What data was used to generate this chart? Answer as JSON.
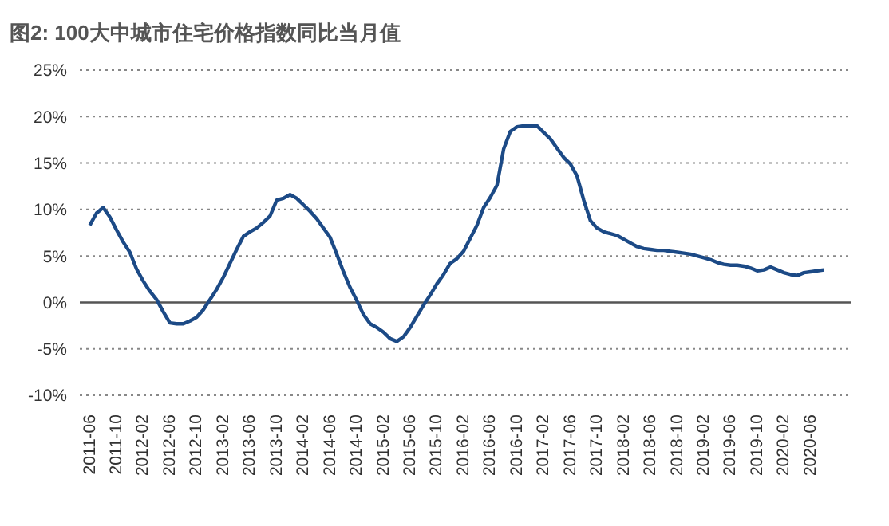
{
  "chart_data": {
    "type": "line",
    "title": "图2: 100大中城市住宅价格指数同比当月值",
    "categories": [
      "2011-06",
      null,
      null,
      null,
      "2011-10",
      null,
      null,
      null,
      "2012-02",
      null,
      null,
      null,
      "2012-06",
      null,
      null,
      null,
      "2012-10",
      null,
      null,
      null,
      "2013-02",
      null,
      null,
      null,
      "2013-06",
      null,
      null,
      null,
      "2013-10",
      null,
      null,
      null,
      "2014-02",
      null,
      null,
      null,
      "2014-06",
      null,
      null,
      null,
      "2014-10",
      null,
      null,
      null,
      "2015-02",
      null,
      null,
      null,
      "2015-06",
      null,
      null,
      null,
      "2015-10",
      null,
      null,
      null,
      "2016-02",
      null,
      null,
      null,
      "2016-06",
      null,
      null,
      null,
      "2016-10",
      null,
      null,
      null,
      "2017-02",
      null,
      null,
      null,
      "2017-06",
      null,
      null,
      null,
      "2017-10",
      null,
      null,
      null,
      "2018-02",
      null,
      null,
      null,
      "2018-06",
      null,
      null,
      null,
      "2018-10",
      null,
      null,
      null,
      "2019-02",
      null,
      null,
      null,
      "2019-06",
      null,
      null,
      null,
      "2019-10",
      null,
      null,
      null,
      "2020-02",
      null,
      null,
      null,
      "2020-06",
      null,
      null
    ],
    "series": [
      {
        "color": "#1c4a86",
        "values": [
          8.3,
          9.6,
          10.2,
          9.2,
          7.8,
          6.5,
          5.4,
          3.6,
          2.3,
          1.2,
          0.3,
          -1.0,
          -2.2,
          -2.3,
          -2.3,
          -2.0,
          -1.6,
          -0.8,
          0.3,
          1.4,
          2.7,
          4.2,
          5.7,
          7.1,
          7.6,
          8.0,
          8.6,
          9.3,
          11.0,
          11.2,
          11.6,
          11.2,
          10.5,
          9.8,
          9.0,
          8.0,
          7.0,
          5.2,
          3.3,
          1.6,
          0.2,
          -1.3,
          -2.3,
          -2.7,
          -3.2,
          -3.9,
          -4.2,
          -3.7,
          -2.7,
          -1.5,
          -0.3,
          0.8,
          2.0,
          3.0,
          4.2,
          4.7,
          5.5,
          6.9,
          8.3,
          10.2,
          11.3,
          12.6,
          16.5,
          18.4,
          18.9,
          19.0,
          19.0,
          19.0,
          18.3,
          17.6,
          16.6,
          15.6,
          14.9,
          13.6,
          11.0,
          8.8,
          8.0,
          7.6,
          7.4,
          7.2,
          6.8,
          6.4,
          6.0,
          5.8,
          5.7,
          5.6,
          5.6,
          5.5,
          5.4,
          5.3,
          5.2,
          5.0,
          4.8,
          4.6,
          4.3,
          4.1,
          4.0,
          4.0,
          3.9,
          3.7,
          3.4,
          3.5,
          3.8,
          3.5,
          3.2,
          3.0,
          2.9,
          3.2,
          3.3,
          3.4,
          3.5
        ]
      }
    ],
    "ylim": [
      -10,
      25
    ],
    "yticks": [
      {
        "value": -10,
        "label": "-10%"
      },
      {
        "value": -5,
        "label": "-5%"
      },
      {
        "value": 0,
        "label": "0%"
      },
      {
        "value": 5,
        "label": "5%"
      },
      {
        "value": 10,
        "label": "10%"
      },
      {
        "value": 15,
        "label": "15%"
      },
      {
        "value": 20,
        "label": "20%"
      },
      {
        "value": 25,
        "label": "25%"
      }
    ],
    "grid": "y",
    "marker": "none",
    "line_style": "solid"
  }
}
